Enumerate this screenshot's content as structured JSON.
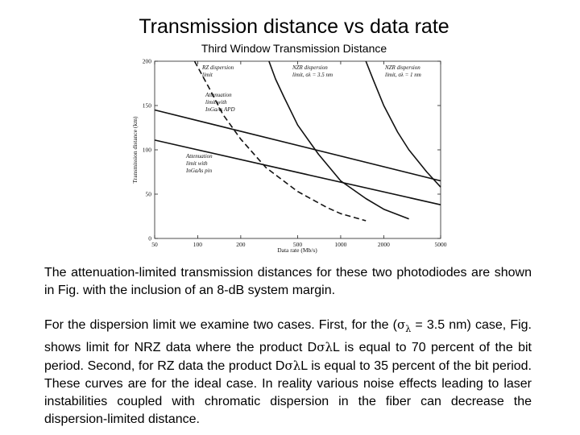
{
  "slide": {
    "title": "Transmission distance vs data rate",
    "subtitle": "Third Window Transmission Distance"
  },
  "chart_data": {
    "type": "line",
    "xlabel": "Data rate (Mb/s)",
    "ylabel": "Transmission distance (km)",
    "x_scale": "log",
    "xlim": [
      50,
      5000
    ],
    "ylim": [
      0,
      200
    ],
    "x_ticks": [
      50,
      100,
      200,
      500,
      1000,
      2000,
      5000
    ],
    "y_ticks": [
      0,
      50,
      100,
      150,
      200
    ],
    "grid": false,
    "series": [
      {
        "name": "RZ dispersion limit",
        "style": "dashed",
        "x": [
          95,
          120,
          150,
          200,
          300,
          500,
          800,
          1000,
          1500
        ],
        "y": [
          200,
          170,
          140,
          112,
          80,
          53,
          35,
          28,
          20
        ]
      },
      {
        "name": "NZR dispersion limit",
        "style": "solid",
        "x": [
          315,
          350,
          400,
          500,
          700,
          1000,
          1500,
          2000,
          3000
        ],
        "y": [
          200,
          180,
          160,
          128,
          95,
          65,
          45,
          33,
          22
        ]
      },
      {
        "name": "NZR dispersion limit",
        "style": "solid",
        "x": [
          1500,
          1700,
          2000,
          2500,
          3000,
          4000,
          5000
        ],
        "y": [
          200,
          178,
          150,
          120,
          100,
          75,
          58
        ]
      },
      {
        "name": "Attenuation limit with InGaAs APD",
        "style": "solid",
        "x": [
          50,
          5000
        ],
        "y": [
          145,
          65
        ]
      },
      {
        "name": "Attenuation limit with InGaAs pin",
        "style": "solid",
        "x": [
          50,
          5000
        ],
        "y": [
          111,
          38
        ]
      }
    ],
    "annotations": [
      {
        "lines": [
          "RZ dispersion",
          "limit"
        ]
      },
      {
        "lines": [
          "NZR dispersion",
          "limit, σλ = 3.5 nm"
        ]
      },
      {
        "lines": [
          "NZR dispersion",
          "limit, σλ = 1 nm"
        ]
      },
      {
        "lines": [
          "Attenuation",
          "limit with",
          "InGaAs APD"
        ]
      },
      {
        "lines": [
          "Attenuation",
          "limit with",
          "InGaAs pin"
        ]
      }
    ]
  },
  "text": {
    "p1": "The attenuation-limited transmission distances for these two photodiodes are shown in Fig. with the inclusion of an 8-dB system margin.",
    "p2_a": "For the dispersion limit we examine two cases. First, for the (",
    "p2_sigma": "σ",
    "p2_lambda": "λ",
    "p2_b": " = 3.5 nm) case, Fig. shows limit for NRZ data where the product D",
    "p2_sigma2": "σ",
    "p2_lambda2": "λ",
    "p2_c": "L is equal to 70 percent of the bit period. Second, for RZ data the product D",
    "p2_sigma3": "σ",
    "p2_lambda3": "λ",
    "p2_d": "L is equal to 35 percent of the bit period. These curves are for the ideal case. In reality various noise effects leading to laser instabilities coupled with chromatic dispersion in the fiber can decrease the dispersion-limited distance."
  }
}
